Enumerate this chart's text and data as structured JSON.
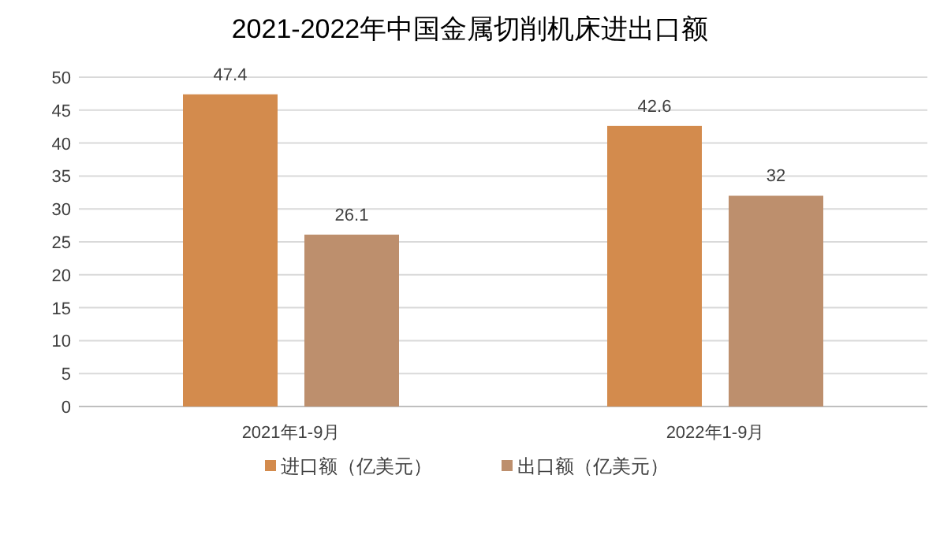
{
  "chart_data": {
    "type": "bar",
    "title": "2021-2022年中国金属切削机床进出口额",
    "categories": [
      "2021年1-9月",
      "2022年1-9月"
    ],
    "series": [
      {
        "name": "进口额（亿美元）",
        "color": "#d38b4d",
        "values": [
          47.4,
          42.6
        ]
      },
      {
        "name": "出口额（亿美元）",
        "color": "#bd8f6d",
        "values": [
          26.1,
          32
        ]
      }
    ],
    "ylim": [
      0,
      50
    ],
    "yticks": [
      0,
      5,
      10,
      15,
      20,
      25,
      30,
      35,
      40,
      45,
      50
    ],
    "grid": "y",
    "legend": "bottom",
    "data_labels": true
  }
}
